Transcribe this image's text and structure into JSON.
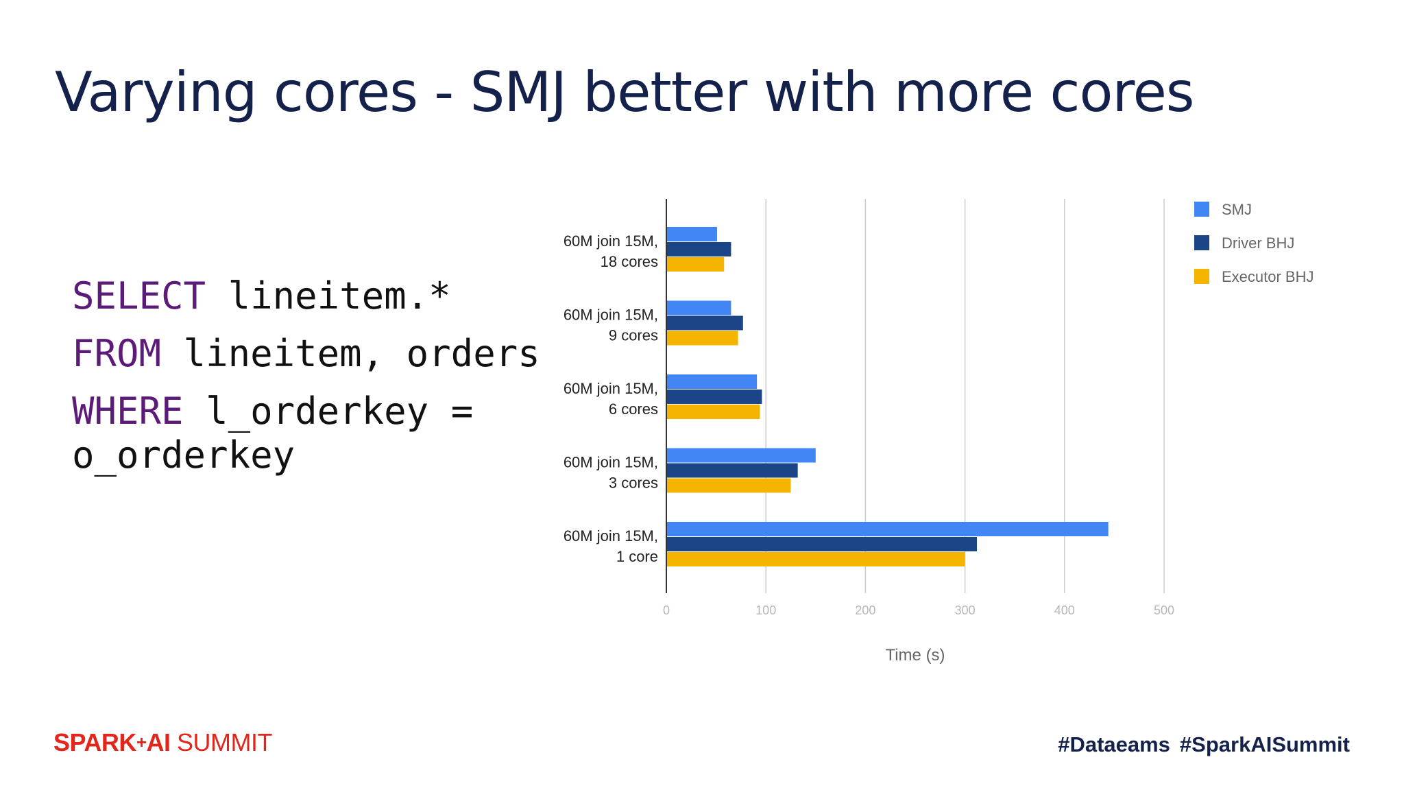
{
  "slide": {
    "title": "Varying cores - SMJ better with more cores",
    "sql": {
      "line1_kw": "SELECT",
      "line1_rest": " lineitem.*",
      "line2_kw": "FROM",
      "line2_rest": " lineitem, orders",
      "line3_kw": "WHERE",
      "line3_rest": " l_orderkey =",
      "line4": "o_orderkey"
    },
    "footer": {
      "logo_spark": "SPARK",
      "logo_plus": "+",
      "logo_ai": "AI",
      "logo_summit": " SUMMIT",
      "hashtag1": "#Dataeams",
      "hashtag2": "#SparkAISummit"
    }
  },
  "chart_data": {
    "type": "bar",
    "orientation": "horizontal",
    "categories": [
      [
        "60M join 15M,",
        "18 cores"
      ],
      [
        "60M join 15M,",
        "9 cores"
      ],
      [
        "60M join 15M,",
        "6 cores"
      ],
      [
        "60M join 15M,",
        "3 cores"
      ],
      [
        "60M join 15M,",
        "1 core"
      ]
    ],
    "series": [
      {
        "name": "SMJ",
        "color": "#4285f4",
        "values": [
          51,
          65,
          91,
          150,
          444
        ]
      },
      {
        "name": "Driver BHJ",
        "color": "#1c4587",
        "values": [
          65,
          77,
          96,
          132,
          312
        ]
      },
      {
        "name": "Executor BHJ",
        "color": "#f4b400",
        "values": [
          58,
          72,
          94,
          125,
          300
        ]
      }
    ],
    "xlabel": "Time (s)",
    "xlim": [
      0,
      500
    ],
    "xticks": [
      "0",
      "100",
      "200",
      "300",
      "400",
      "500"
    ],
    "grid": true,
    "legend": "top-right"
  }
}
